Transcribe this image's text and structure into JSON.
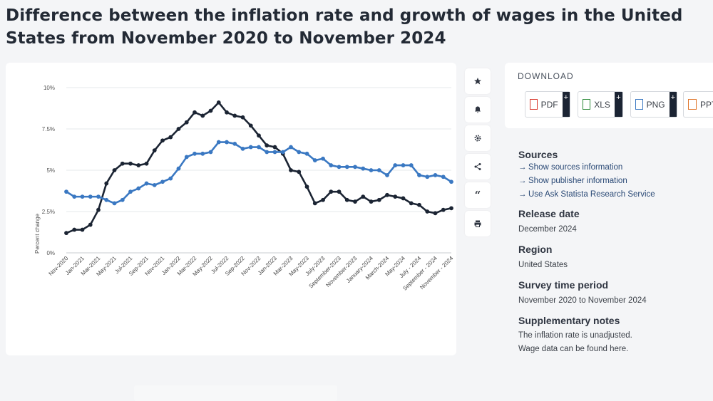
{
  "header": {
    "title": "Difference between the inflation rate and growth of wages in the United States from November 2020 to November 2024"
  },
  "chart_data": {
    "type": "line",
    "title": "",
    "xlabel": "",
    "ylabel": "Percent change",
    "ylim": [
      0,
      10
    ],
    "yticks": [
      "0%",
      "2.5%",
      "5%",
      "7.5%",
      "10%"
    ],
    "grid": true,
    "x": [
      "Nov-2020",
      "Dec-2020",
      "Jan-2021",
      "Feb-2021",
      "Mar-2021",
      "Apr-2021",
      "May-2021",
      "Jun-2021",
      "Jul-2021",
      "Aug-2021",
      "Sep-2021",
      "Oct-2021",
      "Nov-2021",
      "Dec-2021",
      "Jan-2022",
      "Feb-2022",
      "Mar-2022",
      "Apr-2022",
      "May-2022",
      "Jun-2022",
      "Jul-2022",
      "Aug-2022",
      "Sep-2022",
      "Oct-2022",
      "Nov-2022",
      "Dec-2022",
      "Jan-2023",
      "Feb-2023",
      "Mar-2023",
      "Apr-2023",
      "May-2023",
      "Jun-2023",
      "July-2023",
      "Aug-2023",
      "September-2023",
      "Oct-2023",
      "November-2023",
      "Dec-2023",
      "January-2024",
      "Feb-2024",
      "March-2024",
      "Apr-2024",
      "May-2024",
      "Jun-2024",
      "July - 2024",
      "Aug-2024",
      "September - 2024",
      "Oct-2024",
      "November - 2024"
    ],
    "xtick_labels": [
      "Nov-2020",
      "",
      "Jan-2021",
      "",
      "Mar-2021",
      "",
      "May-2021",
      "",
      "Jul-2021",
      "",
      "Sep-2021",
      "",
      "Nov-2021",
      "",
      "Jan-2022",
      "",
      "Mar-2022",
      "",
      "May-2022",
      "",
      "Jul-2022",
      "",
      "Sep-2022",
      "",
      "Nov-2022",
      "",
      "Jan-2023",
      "",
      "Mar-2023",
      "",
      "May-2023",
      "",
      "July-2023",
      "",
      "September-2023",
      "",
      "November-2023",
      "",
      "January-2024",
      "",
      "March-2024",
      "",
      "May-2024",
      "",
      "July - 2024",
      "",
      "September - 2024",
      "",
      "November - 2024"
    ],
    "series": [
      {
        "name": "",
        "color": "#1b2433",
        "values": [
          1.2,
          1.4,
          1.4,
          1.7,
          2.6,
          4.2,
          5.0,
          5.4,
          5.4,
          5.3,
          5.4,
          6.2,
          6.8,
          7.0,
          7.5,
          7.9,
          8.5,
          8.3,
          8.6,
          9.1,
          8.5,
          8.3,
          8.2,
          7.7,
          7.1,
          6.5,
          6.4,
          6.0,
          5.0,
          4.9,
          4.0,
          3.0,
          3.2,
          3.7,
          3.7,
          3.2,
          3.1,
          3.4,
          3.1,
          3.2,
          3.5,
          3.4,
          3.3,
          3.0,
          2.9,
          2.5,
          2.4,
          2.6,
          2.7
        ]
      },
      {
        "name": "",
        "color": "#3a78c2",
        "values": [
          3.7,
          3.4,
          3.4,
          3.4,
          3.4,
          3.2,
          3.0,
          3.2,
          3.7,
          3.9,
          4.2,
          4.1,
          4.3,
          4.5,
          5.1,
          5.8,
          6.0,
          6.0,
          6.1,
          6.7,
          6.7,
          6.6,
          6.3,
          6.4,
          6.4,
          6.1,
          6.1,
          6.1,
          6.4,
          6.1,
          6.0,
          5.6,
          5.7,
          5.3,
          5.2,
          5.2,
          5.2,
          5.1,
          5.0,
          5.0,
          4.7,
          5.3,
          5.3,
          5.3,
          4.7,
          4.6,
          4.7,
          4.6,
          4.3
        ]
      }
    ]
  },
  "toolbar": {
    "icons": [
      "star-icon",
      "bell-icon",
      "gear-icon",
      "share-icon",
      "quote-icon",
      "print-icon"
    ]
  },
  "download": {
    "title": "DOWNLOAD",
    "buttons": [
      {
        "label": "PDF",
        "plus": "+",
        "icon_color": "#d9382d"
      },
      {
        "label": "XLS",
        "plus": "+",
        "icon_color": "#2e8b3a"
      },
      {
        "label": "PNG",
        "plus": "+",
        "icon_color": "#3a78c2"
      },
      {
        "label": "PPT",
        "plus": "",
        "icon_color": "#e0762b"
      }
    ]
  },
  "sidebar": {
    "sources_title": "Sources",
    "sources_links": [
      "Show sources information",
      "Show publisher information",
      "Use Ask Statista Research Service"
    ],
    "release_title": "Release date",
    "release_value": "December 2024",
    "region_title": "Region",
    "region_value": "United States",
    "survey_title": "Survey time period",
    "survey_value": "November 2020 to November 2024",
    "notes_title": "Supplementary notes",
    "notes_line1": "The inflation rate is unadjusted.",
    "notes_line2": "Wage data can be found here."
  }
}
